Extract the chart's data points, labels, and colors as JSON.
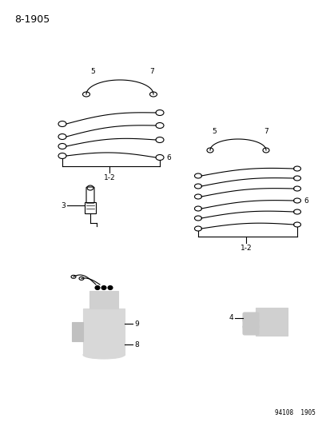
{
  "title": "8-1905",
  "footer": "94108  1905",
  "bg_color": "#ffffff",
  "fg_color": "#000000",
  "title_fontsize": 9,
  "footer_fontsize": 5.5,
  "label_fontsize": 6.5
}
